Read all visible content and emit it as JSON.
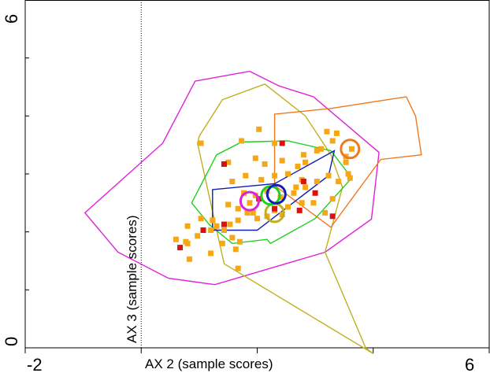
{
  "chart_data": {
    "type": "scatter",
    "xlabel": "AX 2 (sample scores)",
    "ylabel": "AX 3 (sample scores)",
    "xlim": [
      -2,
      6
    ],
    "ylim": [
      0,
      6
    ],
    "x_tick_labels": [
      "-2",
      "6"
    ],
    "y_tick_labels": [
      "0",
      "6"
    ],
    "x_ticks": [
      -2,
      0,
      2,
      4,
      6
    ],
    "y_ticks": [
      0,
      1,
      2,
      3,
      4,
      5,
      6
    ],
    "grid": false,
    "legend": "none",
    "reference_line_x": 0,
    "hulls": [
      {
        "color": "#e020d8",
        "points": [
          [
            -0.97,
            2.33
          ],
          [
            0.37,
            3.53
          ],
          [
            0.93,
            4.6
          ],
          [
            1.87,
            4.77
          ],
          [
            2.37,
            4.52
          ],
          [
            2.97,
            4.33
          ],
          [
            4.1,
            3.37
          ],
          [
            3.97,
            2.22
          ],
          [
            3.17,
            1.65
          ],
          [
            1.27,
            1.09
          ],
          [
            0.47,
            1.2
          ],
          [
            -0.4,
            1.65
          ]
        ]
      },
      {
        "color": "#c0b020",
        "points": [
          [
            1.0,
            3.65
          ],
          [
            1.4,
            4.28
          ],
          [
            2.13,
            4.55
          ],
          [
            2.83,
            4.0
          ],
          [
            3.27,
            3.33
          ],
          [
            3.47,
            2.77
          ],
          [
            3.17,
            1.65
          ],
          [
            3.87,
            0.0
          ],
          [
            4.0,
            -0.1
          ],
          [
            1.43,
            1.45
          ],
          [
            0.97,
            3.53
          ]
        ]
      },
      {
        "color": "#f07820",
        "points": [
          [
            2.3,
            4.03
          ],
          [
            3.27,
            4.13
          ],
          [
            4.57,
            4.33
          ],
          [
            4.73,
            4.0
          ],
          [
            4.83,
            3.33
          ],
          [
            4.13,
            3.25
          ],
          [
            3.27,
            2.08
          ],
          [
            2.3,
            2.8
          ]
        ]
      },
      {
        "color": "#20d020",
        "points": [
          [
            0.87,
            2.5
          ],
          [
            1.3,
            3.33
          ],
          [
            1.73,
            3.55
          ],
          [
            2.53,
            3.57
          ],
          [
            3.27,
            3.4
          ],
          [
            3.63,
            2.93
          ],
          [
            3.0,
            2.23
          ],
          [
            2.23,
            1.8
          ],
          [
            2.17,
            1.87
          ],
          [
            1.57,
            1.8
          ],
          [
            1.17,
            2.13
          ]
        ]
      },
      {
        "color": "#1020b0",
        "points": [
          [
            1.23,
            2.73
          ],
          [
            2.3,
            2.83
          ],
          [
            3.33,
            3.4
          ],
          [
            3.23,
            2.97
          ],
          [
            2.0,
            2.03
          ],
          [
            1.23,
            2.03
          ]
        ]
      }
    ],
    "centroids": [
      {
        "color": "#e020d8",
        "x": 1.87,
        "y": 2.53
      },
      {
        "color": "#c0b020",
        "x": 2.3,
        "y": 2.33
      },
      {
        "color": "#20d020",
        "x": 2.23,
        "y": 2.63
      },
      {
        "color": "#1020b0",
        "x": 2.33,
        "y": 2.65
      },
      {
        "color": "#f07820",
        "x": 3.6,
        "y": 3.43
      }
    ],
    "series": [
      {
        "color": "#f5a814",
        "points": [
          [
            1.03,
            3.53
          ],
          [
            1.73,
            3.57
          ],
          [
            2.03,
            3.77
          ],
          [
            2.3,
            3.53
          ],
          [
            1.97,
            3.27
          ],
          [
            1.5,
            3.2
          ],
          [
            2.13,
            3.17
          ],
          [
            2.43,
            3.23
          ],
          [
            2.8,
            3.33
          ],
          [
            3.1,
            3.43
          ],
          [
            3.3,
            3.57
          ],
          [
            3.2,
            3.73
          ],
          [
            3.37,
            3.7
          ],
          [
            3.63,
            3.43
          ],
          [
            3.53,
            3.2
          ],
          [
            3.57,
            3.0
          ],
          [
            3.03,
            3.4
          ],
          [
            2.83,
            3.2
          ],
          [
            2.7,
            3.13
          ],
          [
            2.53,
            3.0
          ],
          [
            2.3,
            2.97
          ],
          [
            2.07,
            2.9
          ],
          [
            1.8,
            2.97
          ],
          [
            1.57,
            2.87
          ],
          [
            1.77,
            2.67
          ],
          [
            1.97,
            2.63
          ],
          [
            2.17,
            2.7
          ],
          [
            2.4,
            2.6
          ],
          [
            2.63,
            2.67
          ],
          [
            2.83,
            2.77
          ],
          [
            3.03,
            2.87
          ],
          [
            3.23,
            2.97
          ],
          [
            3.4,
            2.87
          ],
          [
            3.6,
            2.93
          ],
          [
            3.3,
            2.57
          ],
          [
            3.17,
            2.33
          ],
          [
            2.97,
            2.5
          ],
          [
            2.77,
            2.5
          ],
          [
            2.53,
            2.43
          ],
          [
            2.3,
            2.37
          ],
          [
            2.17,
            2.27
          ],
          [
            2.0,
            2.23
          ],
          [
            1.83,
            2.33
          ],
          [
            1.67,
            2.2
          ],
          [
            1.53,
            2.13
          ],
          [
            1.43,
            2.03
          ],
          [
            1.3,
            2.1
          ],
          [
            1.2,
            2.03
          ],
          [
            1.23,
            2.2
          ],
          [
            1.03,
            2.23
          ],
          [
            0.8,
            2.1
          ],
          [
            0.77,
            1.83
          ],
          [
            0.97,
            1.93
          ],
          [
            1.5,
            2.47
          ],
          [
            1.67,
            2.4
          ],
          [
            1.87,
            2.5
          ],
          [
            1.93,
            2.33
          ],
          [
            1.57,
            1.9
          ],
          [
            1.7,
            1.83
          ],
          [
            1.4,
            1.8
          ],
          [
            1.63,
            1.7
          ],
          [
            1.2,
            1.63
          ],
          [
            0.8,
            1.8
          ],
          [
            0.6,
            1.87
          ],
          [
            0.83,
            1.53
          ],
          [
            1.67,
            1.37
          ],
          [
            2.43,
            2.3
          ],
          [
            2.67,
            2.77
          ],
          [
            2.77,
            2.9
          ],
          [
            3.53,
            3.3
          ]
        ]
      },
      {
        "color": "#dd1010",
        "points": [
          [
            1.43,
            3.17
          ],
          [
            2.43,
            3.53
          ],
          [
            2.03,
            2.57
          ],
          [
            2.8,
            2.87
          ],
          [
            3.0,
            2.67
          ],
          [
            2.73,
            2.37
          ],
          [
            3.3,
            2.27
          ],
          [
            2.3,
            2.4
          ],
          [
            1.43,
            2.13
          ],
          [
            1.07,
            2.03
          ],
          [
            0.67,
            1.73
          ]
        ]
      }
    ]
  }
}
